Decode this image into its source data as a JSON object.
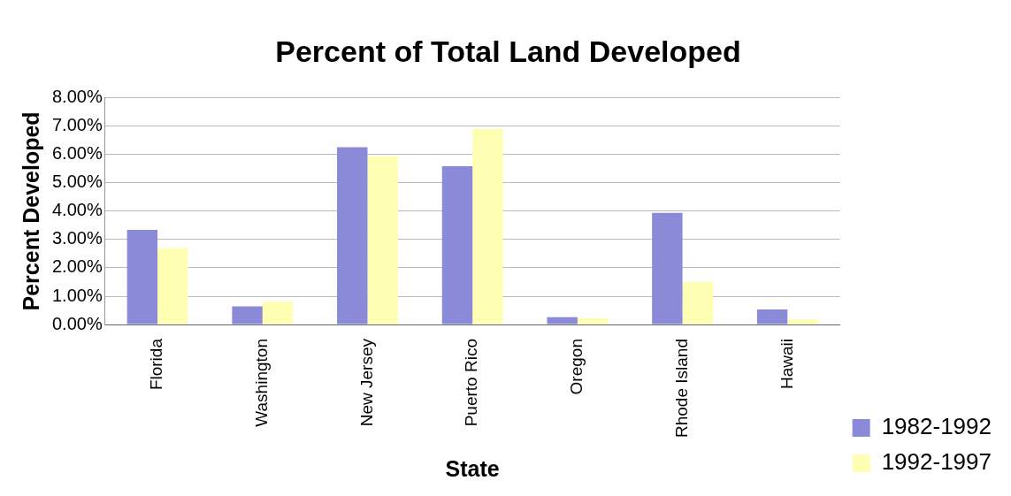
{
  "chart_data": {
    "type": "bar",
    "title": "Percent of Total Land Developed",
    "xlabel": "State",
    "ylabel": "Percent Developed",
    "categories": [
      "Florida",
      "Washington",
      "New Jersey",
      "Puerto Rico",
      "Oregon",
      "Rhode Island",
      "Hawaii"
    ],
    "series": [
      {
        "name": "1982-1992",
        "color": "#8a8ad8",
        "values": [
          3.34,
          0.64,
          6.26,
          5.59,
          0.26,
          3.94,
          0.53
        ]
      },
      {
        "name": "1992-1997",
        "color": "#ffffb4",
        "values": [
          2.7,
          0.81,
          5.94,
          6.91,
          0.22,
          1.5,
          0.18
        ]
      }
    ],
    "ylim": [
      0,
      8
    ],
    "yticks": [
      {
        "value": 0,
        "label": "0.00%"
      },
      {
        "value": 1,
        "label": "1.00%"
      },
      {
        "value": 2,
        "label": "2.00%"
      },
      {
        "value": 3,
        "label": "3.00%"
      },
      {
        "value": 4,
        "label": "4.00%"
      },
      {
        "value": 5,
        "label": "5.00%"
      },
      {
        "value": 6,
        "label": "6.00%"
      },
      {
        "value": 7,
        "label": "7.00%"
      },
      {
        "value": 8,
        "label": "8.00%"
      }
    ],
    "grid": "y",
    "legend": "bottom right"
  }
}
